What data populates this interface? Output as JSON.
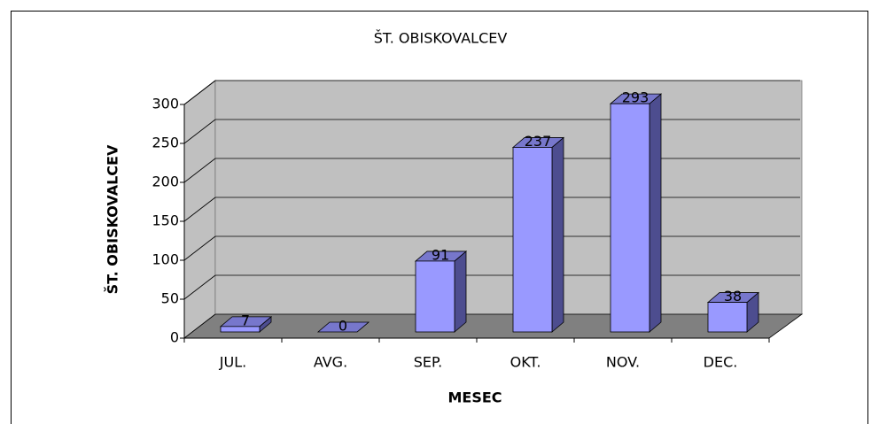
{
  "chart_data": {
    "type": "bar3d",
    "title": "ŠT. OBISKOVALCEV",
    "xlabel": "MESEC",
    "ylabel": "ŠT. OBISKOVALCEV",
    "categories": [
      "JUL.",
      "AVG.",
      "SEP.",
      "OKT.",
      "NOV.",
      "DEC."
    ],
    "values": [
      7,
      0,
      91,
      237,
      293,
      38
    ],
    "color": "#9999ff",
    "ylim": [
      0,
      300
    ],
    "yticks": [
      0,
      50,
      100,
      150,
      200,
      250,
      300
    ],
    "grid": true
  }
}
